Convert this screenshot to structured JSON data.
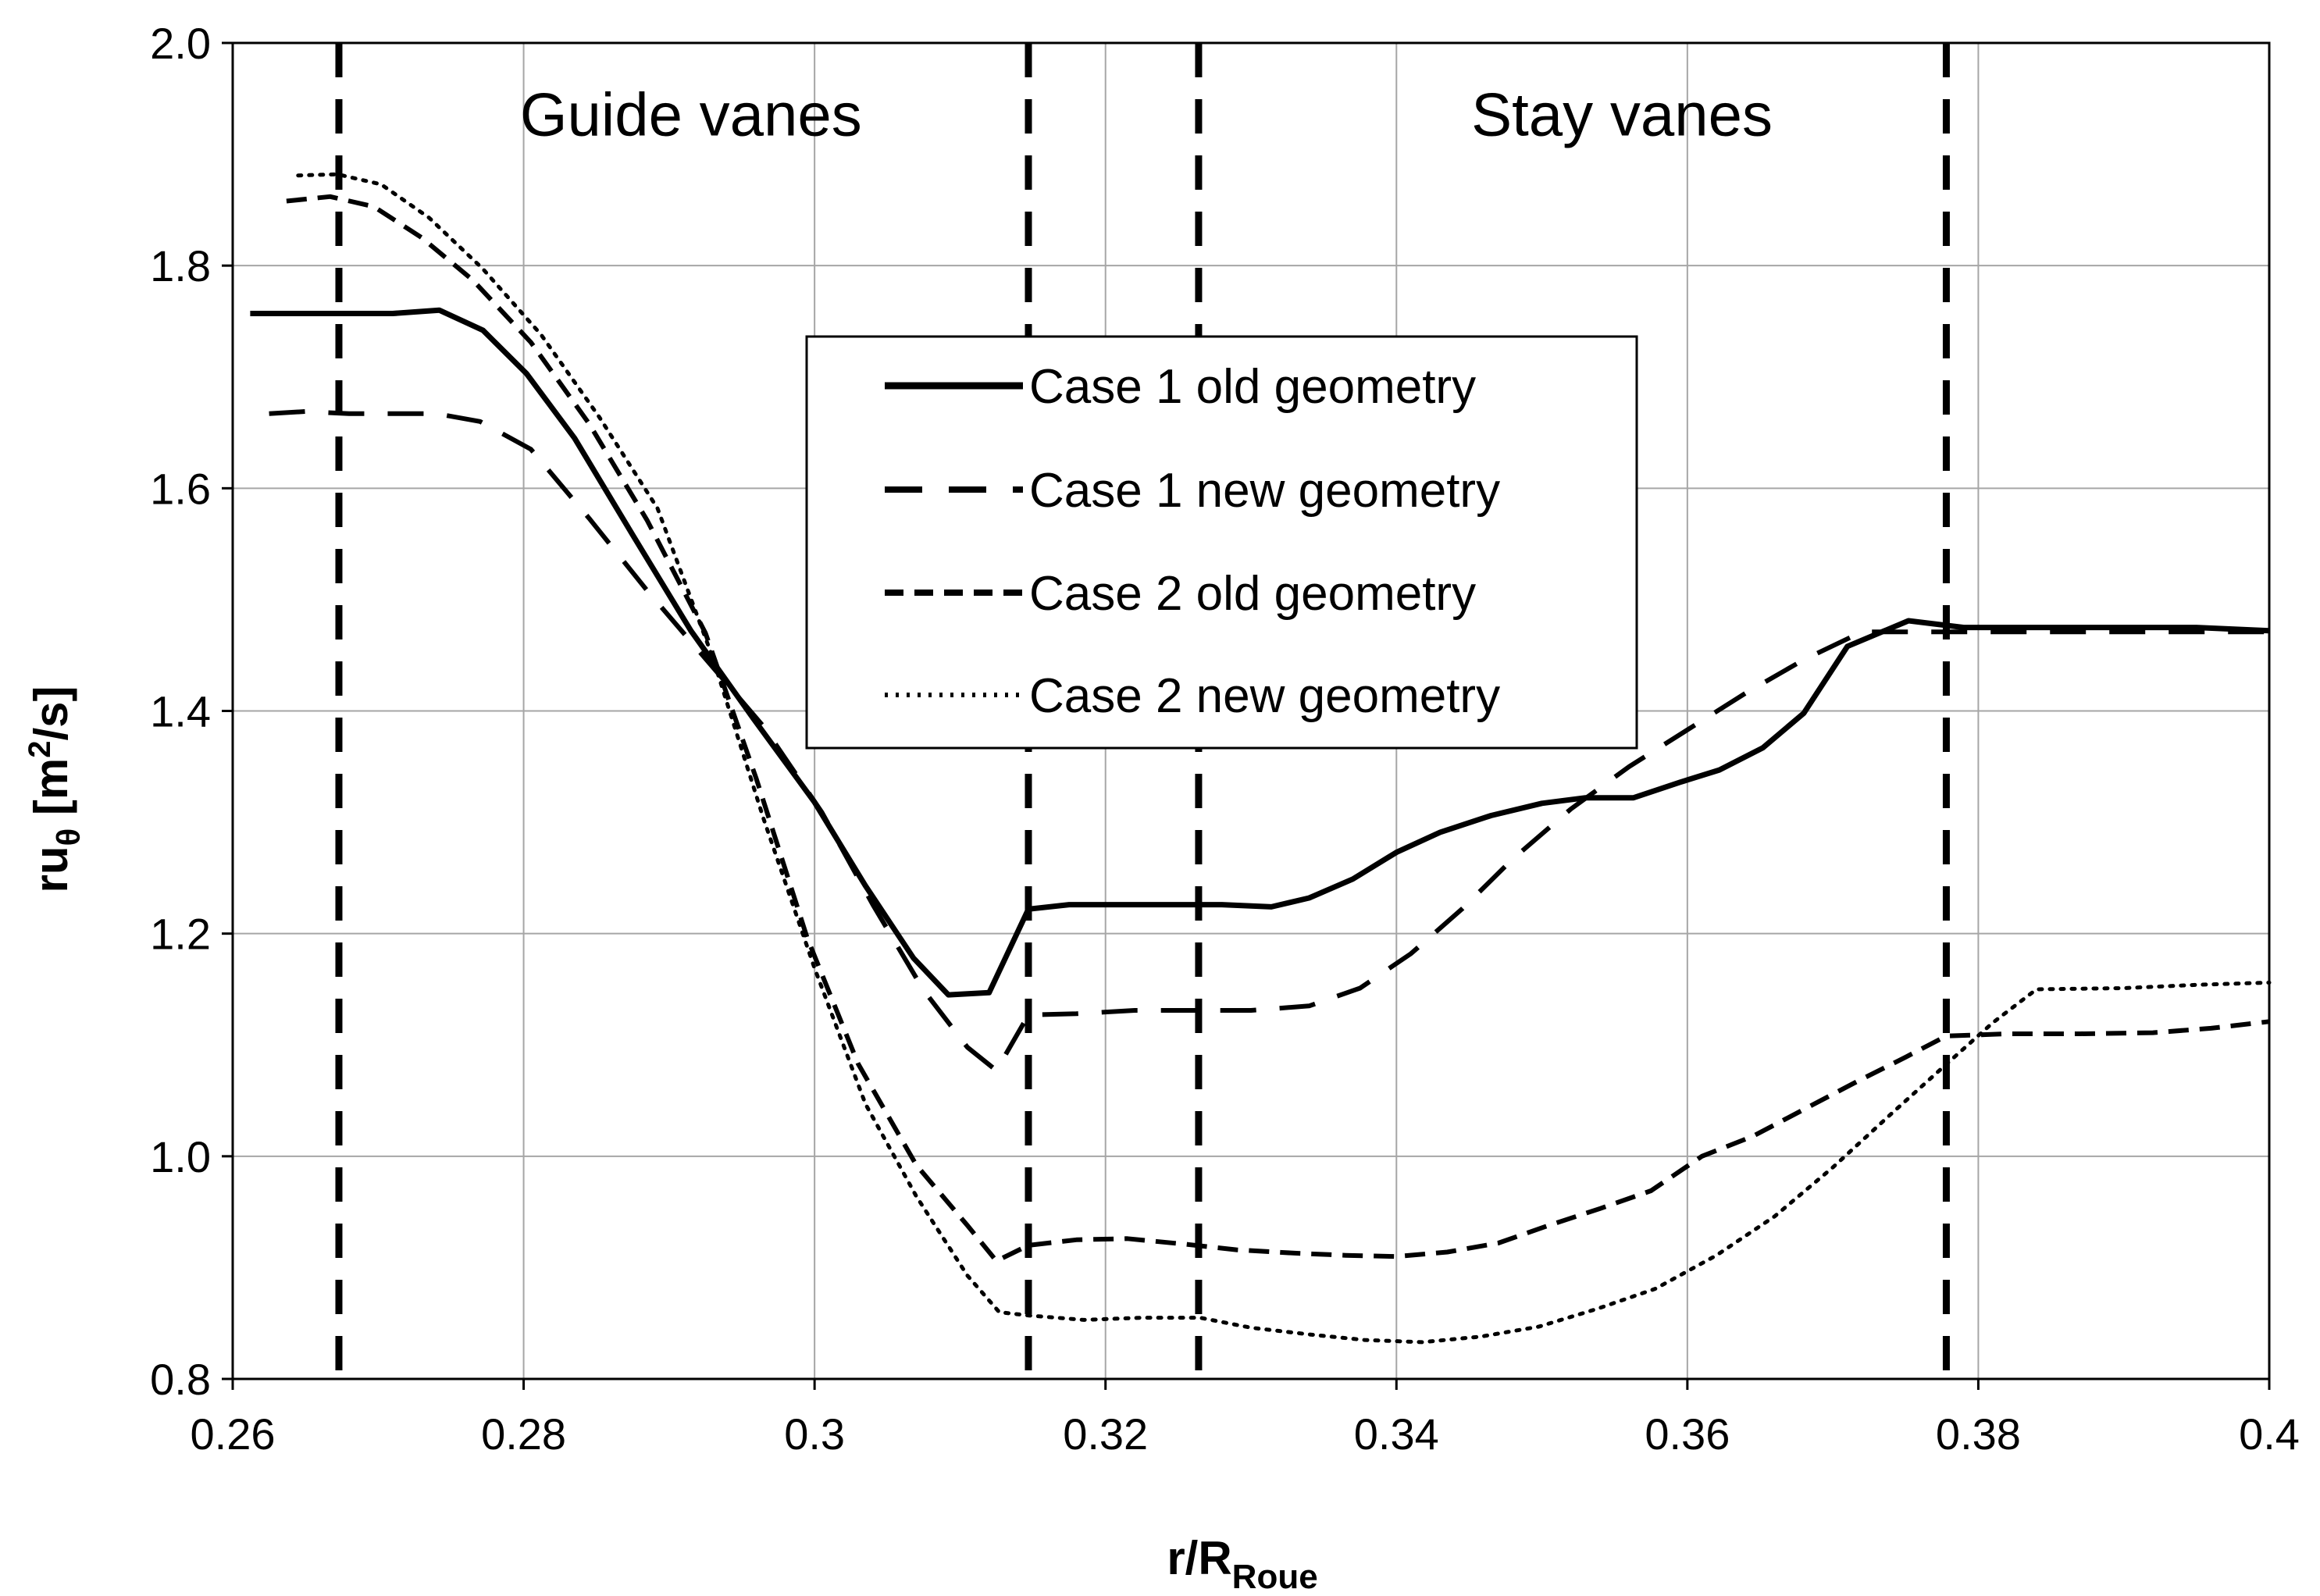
{
  "chart_data": {
    "type": "line",
    "title": "",
    "xlabel": {
      "main": "r/R",
      "sub": "Roue"
    },
    "ylabel": {
      "main": "ru",
      "sub": "θ",
      "unit_pre": " [m",
      "unit_sup": "2",
      "unit_post": "/s]"
    },
    "xlim": [
      0.26,
      0.4
    ],
    "ylim": [
      0.8,
      2.0
    ],
    "xticks": [
      0.26,
      0.28,
      0.3,
      0.32,
      0.34,
      0.36,
      0.38,
      0.4
    ],
    "xtick_labels": [
      "0.26",
      "0.28",
      "0.3",
      "0.32",
      "0.34",
      "0.36",
      "0.38",
      "0.4"
    ],
    "yticks": [
      0.8,
      1.0,
      1.2,
      1.4,
      1.6,
      1.8,
      2.0
    ],
    "ytick_labels": [
      "0.8",
      "1.0",
      "1.2",
      "1.4",
      "1.6",
      "1.8",
      "2.0"
    ],
    "grid": true,
    "legend_position": "center",
    "region_labels": [
      {
        "text": "Guide vanes",
        "x": 0.2915,
        "y": 1.935
      },
      {
        "text": "Stay vanes",
        "x": 0.3555,
        "y": 1.935
      }
    ],
    "boundaries": [
      0.2673,
      0.3147,
      0.3264,
      0.3778
    ],
    "series": [
      {
        "name": "Case 1 old geometry",
        "style": "solid",
        "x": [
          0.2612,
          0.264,
          0.267,
          0.271,
          0.2742,
          0.2772,
          0.2802,
          0.2835,
          0.2875,
          0.2915,
          0.2958,
          0.3,
          0.3035,
          0.3068,
          0.3092,
          0.312,
          0.3147,
          0.3175,
          0.321,
          0.325,
          0.328,
          0.3314,
          0.334,
          0.337,
          0.34,
          0.343,
          0.3465,
          0.35,
          0.353,
          0.3563,
          0.3595,
          0.3622,
          0.3652,
          0.368,
          0.371,
          0.3752,
          0.379,
          0.384,
          0.39,
          0.395,
          0.4
        ],
        "y": [
          1.757,
          1.757,
          1.757,
          1.757,
          1.76,
          1.742,
          1.703,
          1.645,
          1.558,
          1.472,
          1.393,
          1.318,
          1.243,
          1.178,
          1.145,
          1.147,
          1.222,
          1.226,
          1.226,
          1.226,
          1.226,
          1.224,
          1.232,
          1.249,
          1.273,
          1.291,
          1.306,
          1.317,
          1.322,
          1.322,
          1.336,
          1.347,
          1.367,
          1.398,
          1.458,
          1.481,
          1.475,
          1.475,
          1.475,
          1.475,
          1.472
        ]
      },
      {
        "name": "Case 1 new geometry",
        "style": "long-dash",
        "x": [
          0.2625,
          0.265,
          0.268,
          0.271,
          0.274,
          0.277,
          0.2805,
          0.2845,
          0.2885,
          0.2925,
          0.2965,
          0.3005,
          0.304,
          0.3075,
          0.3105,
          0.3125,
          0.3147,
          0.318,
          0.322,
          0.326,
          0.33,
          0.334,
          0.3375,
          0.341,
          0.3445,
          0.348,
          0.352,
          0.356,
          0.36,
          0.364,
          0.368,
          0.372,
          0.376,
          0.38,
          0.385,
          0.39,
          0.395,
          0.4
        ],
        "y": [
          1.667,
          1.669,
          1.667,
          1.667,
          1.667,
          1.66,
          1.635,
          1.573,
          1.508,
          1.447,
          1.386,
          1.309,
          1.226,
          1.149,
          1.098,
          1.077,
          1.127,
          1.128,
          1.131,
          1.131,
          1.131,
          1.135,
          1.151,
          1.182,
          1.222,
          1.267,
          1.312,
          1.35,
          1.383,
          1.416,
          1.446,
          1.471,
          1.471,
          1.471,
          1.471,
          1.471,
          1.471,
          1.471
        ]
      },
      {
        "name": "Case 2 old geometry",
        "style": "short-dash",
        "x": [
          0.2637,
          0.2667,
          0.2697,
          0.273,
          0.2765,
          0.2805,
          0.2845,
          0.2885,
          0.2925,
          0.296,
          0.2995,
          0.303,
          0.307,
          0.3105,
          0.3125,
          0.3147,
          0.318,
          0.3215,
          0.3255,
          0.329,
          0.333,
          0.3365,
          0.34,
          0.3435,
          0.347,
          0.3505,
          0.354,
          0.3575,
          0.361,
          0.3645,
          0.368,
          0.3715,
          0.375,
          0.3778,
          0.382,
          0.387,
          0.392,
          0.396,
          0.4
        ],
        "y": [
          1.858,
          1.862,
          1.853,
          1.825,
          1.787,
          1.731,
          1.658,
          1.571,
          1.47,
          1.339,
          1.196,
          1.083,
          0.992,
          0.938,
          0.906,
          0.92,
          0.925,
          0.926,
          0.921,
          0.916,
          0.913,
          0.911,
          0.91,
          0.914,
          0.922,
          0.938,
          0.953,
          0.969,
          1.0,
          1.018,
          1.042,
          1.066,
          1.089,
          1.108,
          1.11,
          1.11,
          1.111,
          1.115,
          1.121
        ]
      },
      {
        "name": "Case 2 new geometry",
        "style": "dotted",
        "x": [
          0.2645,
          0.2672,
          0.2702,
          0.2735,
          0.2772,
          0.2812,
          0.2852,
          0.2892,
          0.293,
          0.2965,
          0.3,
          0.3035,
          0.307,
          0.3105,
          0.3127,
          0.3147,
          0.3185,
          0.3225,
          0.3265,
          0.33,
          0.334,
          0.3378,
          0.3418,
          0.3458,
          0.3498,
          0.3538,
          0.3578,
          0.362,
          0.366,
          0.37,
          0.374,
          0.378,
          0.381,
          0.384,
          0.39,
          0.395,
          0.4
        ],
        "y": [
          1.881,
          1.882,
          1.873,
          1.843,
          1.797,
          1.738,
          1.664,
          1.582,
          1.448,
          1.303,
          1.169,
          1.047,
          0.964,
          0.893,
          0.86,
          0.857,
          0.853,
          0.855,
          0.855,
          0.846,
          0.84,
          0.835,
          0.833,
          0.838,
          0.847,
          0.863,
          0.881,
          0.911,
          0.946,
          0.99,
          1.038,
          1.085,
          1.12,
          1.15,
          1.151,
          1.154,
          1.156
        ]
      }
    ]
  }
}
